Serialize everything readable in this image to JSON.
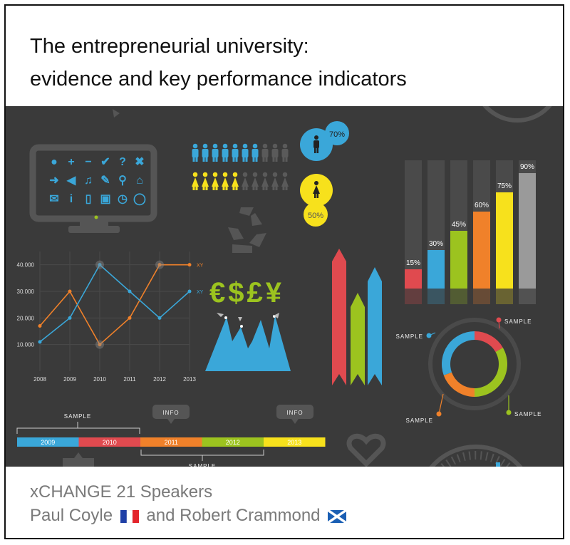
{
  "title": {
    "line1": "The entrepreneurial university:",
    "line2": "evidence and key performance indicators"
  },
  "footer": {
    "line1": "xCHANGE 21 Speakers",
    "speaker1": "Paul Coyle",
    "conjunction": "and",
    "speaker2": "Robert Crammond",
    "flag1": "france-flag-icon",
    "flag2": "scotland-flag-icon"
  },
  "infographic": {
    "people": {
      "male_percent": "70%",
      "female_percent": "50%",
      "male_value": 70,
      "female_value": 50
    },
    "currency_symbols": "€$£¥",
    "bars": {
      "values": [
        15,
        30,
        45,
        60,
        75,
        90
      ],
      "labels": [
        "15%",
        "30%",
        "45%",
        "60%",
        "75%",
        "90%"
      ],
      "colors": [
        "#e04a4f",
        "#3aa7d9",
        "#9cc31f",
        "#f0812a",
        "#f7e11c",
        "#9a9a9a"
      ]
    },
    "line_chart": {
      "x": [
        "2008",
        "2009",
        "2010",
        "2011",
        "2012",
        "2013"
      ],
      "y_ticks": [
        "10.000",
        "20.000",
        "30.000",
        "40.000"
      ],
      "series": [
        {
          "name": "XY",
          "color": "#f0812a",
          "values": [
            17000,
            30000,
            10000,
            20000,
            40000,
            40000
          ]
        },
        {
          "name": "XY",
          "color": "#3aa7d9",
          "values": [
            11000,
            20000,
            40000,
            30000,
            20000,
            30000
          ]
        }
      ]
    },
    "timeline": {
      "years": [
        "2009",
        "2010",
        "2011",
        "2012",
        "2013"
      ],
      "colors": [
        "#3aa7d9",
        "#e04a4f",
        "#f0812a",
        "#9cc31f",
        "#f7e11c"
      ],
      "sample_top": "SAMPLE",
      "sample_bottom": "SAMPLE",
      "info1": "INFO",
      "info2": "INFO"
    },
    "donut": {
      "sample_labels": [
        "SAMPLE",
        "SAMPLE",
        "SAMPLE",
        "SAMPLE"
      ]
    },
    "icons": [
      "user-icon",
      "plus-icon",
      "minus-icon",
      "check-icon",
      "question-icon",
      "close-icon",
      "arrow-right-icon",
      "speaker-icon",
      "music-icon",
      "wrench-icon",
      "magnifier-icon",
      "home-icon",
      "mail-icon",
      "info-icon",
      "phone-icon",
      "lock-icon",
      "clock-icon",
      "chat-icon"
    ]
  }
}
